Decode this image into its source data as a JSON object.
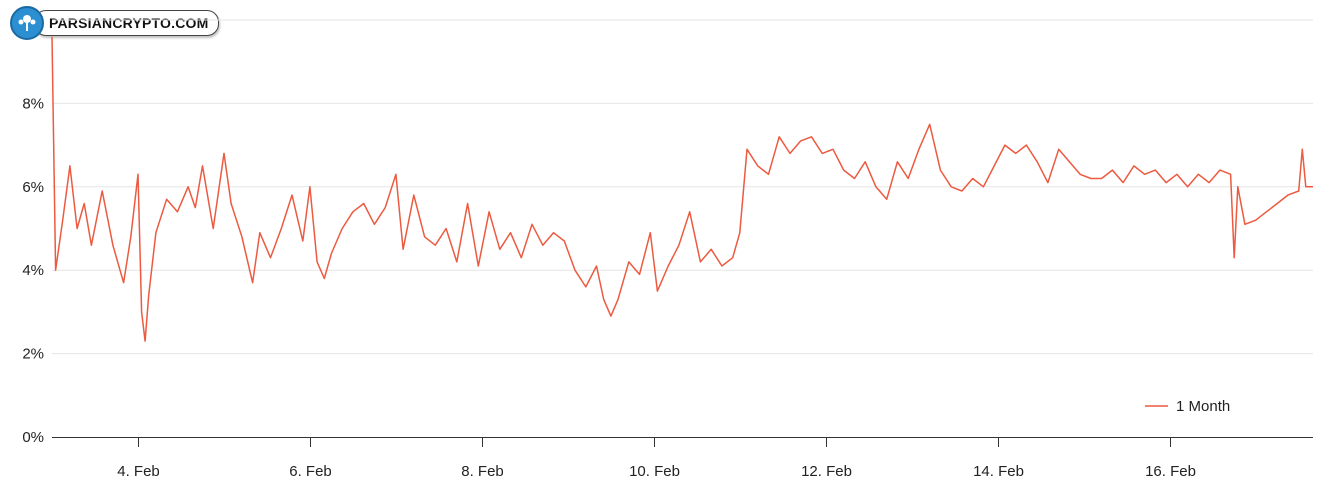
{
  "watermark": {
    "text": "PARSIANCRYPTO.COM"
  },
  "colors": {
    "series": "#ec5a40",
    "grid": "#e6e6e6",
    "axis": "#333333",
    "text": "#222222"
  },
  "chart_data": {
    "type": "line",
    "title": "",
    "xlabel": "",
    "ylabel": "",
    "x_ticks": [
      "4. Feb",
      "6. Feb",
      "8. Feb",
      "10. Feb",
      "12. Feb",
      "14. Feb",
      "16. Feb"
    ],
    "y_ticks": [
      "0%",
      "2%",
      "4%",
      "6%",
      "8%"
    ],
    "y_tick_values": [
      0,
      2,
      4,
      6,
      8
    ],
    "ylim": [
      0,
      10
    ],
    "xlim": [
      "2025-02-03 00:00",
      "2025-02-17 16:00"
    ],
    "grid": true,
    "legend": {
      "position": "bottom-right"
    },
    "series": [
      {
        "name": "1 Month",
        "color": "#ec5a40",
        "points": [
          [
            "2025-02-03 00:00",
            9.6
          ],
          [
            "2025-02-03 01:00",
            4.0
          ],
          [
            "2025-02-03 03:00",
            5.2
          ],
          [
            "2025-02-03 05:00",
            6.5
          ],
          [
            "2025-02-03 07:00",
            5.0
          ],
          [
            "2025-02-03 09:00",
            5.6
          ],
          [
            "2025-02-03 11:00",
            4.6
          ],
          [
            "2025-02-03 14:00",
            5.9
          ],
          [
            "2025-02-03 17:00",
            4.6
          ],
          [
            "2025-02-03 20:00",
            3.7
          ],
          [
            "2025-02-03 22:00",
            4.8
          ],
          [
            "2025-02-04 00:00",
            6.3
          ],
          [
            "2025-02-04 01:00",
            3.0
          ],
          [
            "2025-02-04 02:00",
            2.3
          ],
          [
            "2025-02-04 03:00",
            3.4
          ],
          [
            "2025-02-04 05:00",
            4.9
          ],
          [
            "2025-02-04 08:00",
            5.7
          ],
          [
            "2025-02-04 11:00",
            5.4
          ],
          [
            "2025-02-04 14:00",
            6.0
          ],
          [
            "2025-02-04 16:00",
            5.5
          ],
          [
            "2025-02-04 18:00",
            6.5
          ],
          [
            "2025-02-04 21:00",
            5.0
          ],
          [
            "2025-02-05 00:00",
            6.8
          ],
          [
            "2025-02-05 02:00",
            5.6
          ],
          [
            "2025-02-05 05:00",
            4.8
          ],
          [
            "2025-02-05 08:00",
            3.7
          ],
          [
            "2025-02-05 10:00",
            4.9
          ],
          [
            "2025-02-05 13:00",
            4.3
          ],
          [
            "2025-02-05 16:00",
            5.0
          ],
          [
            "2025-02-05 19:00",
            5.8
          ],
          [
            "2025-02-05 22:00",
            4.7
          ],
          [
            "2025-02-06 00:00",
            6.0
          ],
          [
            "2025-02-06 02:00",
            4.2
          ],
          [
            "2025-02-06 04:00",
            3.8
          ],
          [
            "2025-02-06 06:00",
            4.4
          ],
          [
            "2025-02-06 09:00",
            5.0
          ],
          [
            "2025-02-06 12:00",
            5.4
          ],
          [
            "2025-02-06 15:00",
            5.6
          ],
          [
            "2025-02-06 18:00",
            5.1
          ],
          [
            "2025-02-06 21:00",
            5.5
          ],
          [
            "2025-02-07 00:00",
            6.3
          ],
          [
            "2025-02-07 02:00",
            4.5
          ],
          [
            "2025-02-07 05:00",
            5.8
          ],
          [
            "2025-02-07 08:00",
            4.8
          ],
          [
            "2025-02-07 11:00",
            4.6
          ],
          [
            "2025-02-07 14:00",
            5.0
          ],
          [
            "2025-02-07 17:00",
            4.2
          ],
          [
            "2025-02-07 20:00",
            5.6
          ],
          [
            "2025-02-07 23:00",
            4.1
          ],
          [
            "2025-02-08 02:00",
            5.4
          ],
          [
            "2025-02-08 05:00",
            4.5
          ],
          [
            "2025-02-08 08:00",
            4.9
          ],
          [
            "2025-02-08 11:00",
            4.3
          ],
          [
            "2025-02-08 14:00",
            5.1
          ],
          [
            "2025-02-08 17:00",
            4.6
          ],
          [
            "2025-02-08 20:00",
            4.9
          ],
          [
            "2025-02-08 23:00",
            4.7
          ],
          [
            "2025-02-09 02:00",
            4.0
          ],
          [
            "2025-02-09 05:00",
            3.6
          ],
          [
            "2025-02-09 08:00",
            4.1
          ],
          [
            "2025-02-09 10:00",
            3.3
          ],
          [
            "2025-02-09 12:00",
            2.9
          ],
          [
            "2025-02-09 14:00",
            3.3
          ],
          [
            "2025-02-09 17:00",
            4.2
          ],
          [
            "2025-02-09 20:00",
            3.9
          ],
          [
            "2025-02-09 23:00",
            4.9
          ],
          [
            "2025-02-10 01:00",
            3.5
          ],
          [
            "2025-02-10 04:00",
            4.1
          ],
          [
            "2025-02-10 07:00",
            4.6
          ],
          [
            "2025-02-10 10:00",
            5.4
          ],
          [
            "2025-02-10 13:00",
            4.2
          ],
          [
            "2025-02-10 16:00",
            4.5
          ],
          [
            "2025-02-10 19:00",
            4.1
          ],
          [
            "2025-02-10 22:00",
            4.3
          ],
          [
            "2025-02-11 00:00",
            4.9
          ],
          [
            "2025-02-11 02:00",
            6.9
          ],
          [
            "2025-02-11 05:00",
            6.5
          ],
          [
            "2025-02-11 08:00",
            6.3
          ],
          [
            "2025-02-11 11:00",
            7.2
          ],
          [
            "2025-02-11 14:00",
            6.8
          ],
          [
            "2025-02-11 17:00",
            7.1
          ],
          [
            "2025-02-11 20:00",
            7.2
          ],
          [
            "2025-02-11 23:00",
            6.8
          ],
          [
            "2025-02-12 02:00",
            6.9
          ],
          [
            "2025-02-12 05:00",
            6.4
          ],
          [
            "2025-02-12 08:00",
            6.2
          ],
          [
            "2025-02-12 11:00",
            6.6
          ],
          [
            "2025-02-12 14:00",
            6.0
          ],
          [
            "2025-02-12 17:00",
            5.7
          ],
          [
            "2025-02-12 20:00",
            6.6
          ],
          [
            "2025-02-12 23:00",
            6.2
          ],
          [
            "2025-02-13 02:00",
            6.9
          ],
          [
            "2025-02-13 05:00",
            7.5
          ],
          [
            "2025-02-13 08:00",
            6.4
          ],
          [
            "2025-02-13 11:00",
            6.0
          ],
          [
            "2025-02-13 14:00",
            5.9
          ],
          [
            "2025-02-13 17:00",
            6.2
          ],
          [
            "2025-02-13 20:00",
            6.0
          ],
          [
            "2025-02-13 23:00",
            6.5
          ],
          [
            "2025-02-14 02:00",
            7.0
          ],
          [
            "2025-02-14 05:00",
            6.8
          ],
          [
            "2025-02-14 08:00",
            7.0
          ],
          [
            "2025-02-14 11:00",
            6.6
          ],
          [
            "2025-02-14 14:00",
            6.1
          ],
          [
            "2025-02-14 17:00",
            6.9
          ],
          [
            "2025-02-14 20:00",
            6.6
          ],
          [
            "2025-02-14 23:00",
            6.3
          ],
          [
            "2025-02-15 02:00",
            6.2
          ],
          [
            "2025-02-15 05:00",
            6.2
          ],
          [
            "2025-02-15 08:00",
            6.4
          ],
          [
            "2025-02-15 11:00",
            6.1
          ],
          [
            "2025-02-15 14:00",
            6.5
          ],
          [
            "2025-02-15 17:00",
            6.3
          ],
          [
            "2025-02-15 20:00",
            6.4
          ],
          [
            "2025-02-15 23:00",
            6.1
          ],
          [
            "2025-02-16 02:00",
            6.3
          ],
          [
            "2025-02-16 05:00",
            6.0
          ],
          [
            "2025-02-16 08:00",
            6.3
          ],
          [
            "2025-02-16 11:00",
            6.1
          ],
          [
            "2025-02-16 14:00",
            6.4
          ],
          [
            "2025-02-16 17:00",
            6.3
          ],
          [
            "2025-02-16 18:00",
            4.3
          ],
          [
            "2025-02-16 19:00",
            6.0
          ],
          [
            "2025-02-16 21:00",
            5.1
          ],
          [
            "2025-02-17 00:00",
            5.2
          ],
          [
            "2025-02-17 03:00",
            5.4
          ],
          [
            "2025-02-17 06:00",
            5.6
          ],
          [
            "2025-02-17 09:00",
            5.8
          ],
          [
            "2025-02-17 12:00",
            5.9
          ],
          [
            "2025-02-17 13:00",
            6.9
          ],
          [
            "2025-02-17 14:00",
            6.0
          ],
          [
            "2025-02-17 16:00",
            6.0
          ]
        ]
      }
    ]
  }
}
